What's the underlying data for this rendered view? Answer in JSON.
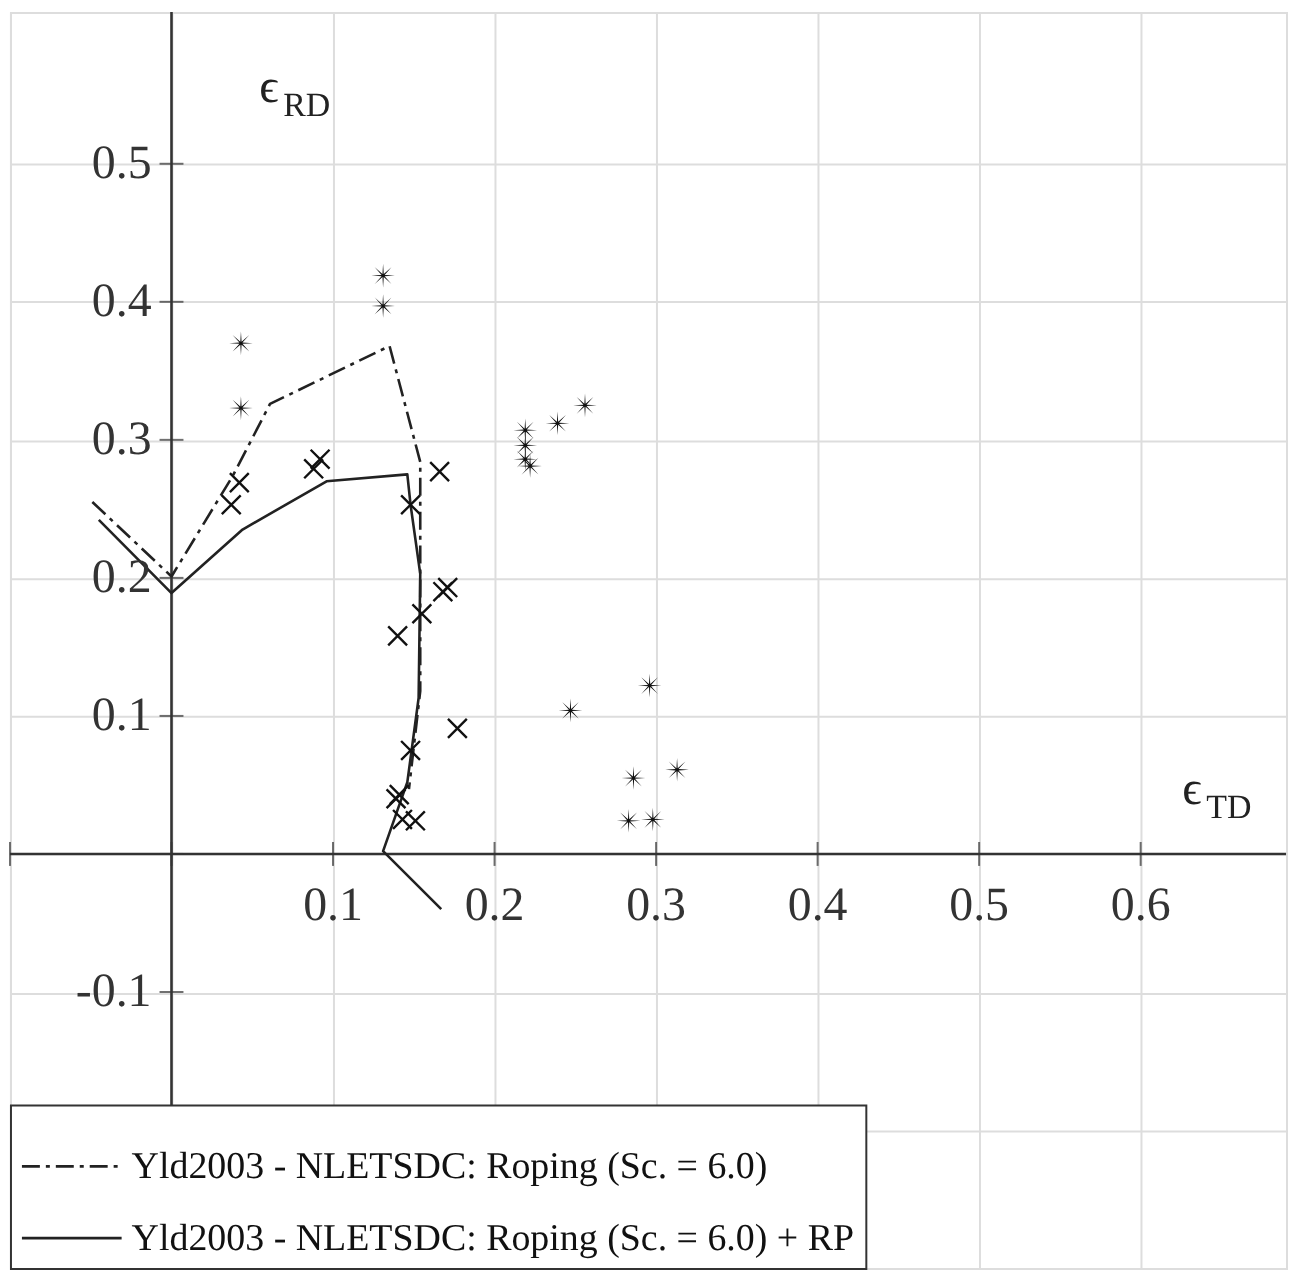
{
  "chart_data": {
    "type": "line",
    "xlabel": "ϵ$_{TD}$",
    "ylabel": "ϵ$_{RD}$",
    "xlim": [
      -0.1,
      0.69
    ],
    "ylim": [
      -0.3,
      0.61
    ],
    "xticks": [
      {
        "value": -0.1,
        "label": null
      },
      {
        "value": 0,
        "label": null
      },
      0.1,
      0.2,
      0.3,
      0.4,
      0.5,
      0.6
    ],
    "yticks": [
      {
        "value": -0.2,
        "label": null
      },
      -0.1,
      {
        "value": 0,
        "label": null
      },
      0.1,
      0.2,
      0.3,
      0.4,
      0.5
    ],
    "grid": true,
    "legend": "bottom left",
    "series": [
      {
        "name": "Yld2003 - NLETSDC: Roping (Sc. = 6.0)",
        "type": "line",
        "line_style": "dashdot",
        "color": "#222222",
        "x": [
          -0.049,
          0.0,
          0.038,
          0.061,
          0.135,
          0.154,
          0.154,
          0.147
        ],
        "values": [
          0.255,
          0.201,
          0.274,
          0.326,
          0.368,
          0.284,
          0.118,
          0.047
        ]
      },
      {
        "name": "Yld2003 - NLETSDC: Roping (Sc. = 6.0) + RP",
        "type": "line",
        "line_style": "solid",
        "color": "#222222",
        "x": [
          -0.045,
          0.0,
          0.044,
          0.096,
          0.146,
          0.148,
          0.154,
          0.153,
          0.146,
          0.131,
          0.167
        ],
        "values": [
          0.242,
          0.189,
          0.235,
          0.27,
          0.275,
          0.253,
          0.203,
          0.113,
          0.052,
          0.002,
          -0.04
        ]
      },
      {
        "type": "scatter",
        "marker": "star",
        "color": "#111111",
        "x": [
          0.131,
          0.131,
          0.043,
          0.043,
          0.219,
          0.219,
          0.219,
          0.222,
          0.239,
          0.256,
          0.247,
          0.296,
          0.286,
          0.313,
          0.283,
          0.298
        ],
        "values": [
          0.419,
          0.397,
          0.37,
          0.323,
          0.307,
          0.296,
          0.286,
          0.281,
          0.312,
          0.325,
          0.104,
          0.122,
          0.055,
          0.061,
          0.024,
          0.025
        ]
      },
      {
        "type": "scatter",
        "marker": "cross",
        "color": "#111111",
        "x": [
          0.042,
          0.037,
          0.092,
          0.088,
          0.166,
          0.148,
          0.171,
          0.168,
          0.155,
          0.14,
          0.177,
          0.148,
          0.139,
          0.141,
          0.143,
          0.151
        ],
        "values": [
          0.269,
          0.253,
          0.286,
          0.279,
          0.277,
          0.253,
          0.193,
          0.19,
          0.174,
          0.158,
          0.091,
          0.075,
          0.04,
          0.043,
          0.025,
          0.024
        ]
      }
    ]
  }
}
